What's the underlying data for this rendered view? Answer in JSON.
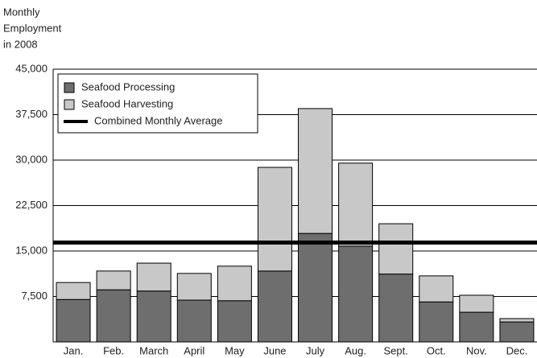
{
  "chart_data": {
    "type": "stacked-bar",
    "title_lines": [
      "Monthly",
      "Employment",
      "in 2008"
    ],
    "categories": [
      "Jan.",
      "Feb.",
      "March",
      "April",
      "May",
      "June",
      "July",
      "Aug.",
      "Sept.",
      "Oct.",
      "Nov.",
      "Dec."
    ],
    "series": [
      {
        "name": "Seafood Processing",
        "color": "#6e6e6e",
        "values": [
          7000,
          8600,
          8400,
          6900,
          6800,
          11700,
          17900,
          15800,
          11200,
          6600,
          4900,
          3300
        ]
      },
      {
        "name": "Seafood Harvesting",
        "color": "#c8c8c8",
        "values": [
          2800,
          3100,
          4600,
          4400,
          5700,
          17100,
          20600,
          13700,
          8300,
          4300,
          2800,
          550
        ]
      }
    ],
    "average": {
      "name": "Combined Monthly Average",
      "color": "#000000",
      "value": 16400
    },
    "ylim": [
      0,
      45000
    ],
    "yticks": [
      {
        "value": 7500,
        "label": "7,500"
      },
      {
        "value": 15000,
        "label": "15,000"
      },
      {
        "value": 22500,
        "label": "22,500"
      },
      {
        "value": 30000,
        "label": "30,000"
      },
      {
        "value": 37500,
        "label": "37,500"
      },
      {
        "value": 45000,
        "label": "45,000"
      }
    ],
    "grid": true,
    "legend": "top-left"
  }
}
